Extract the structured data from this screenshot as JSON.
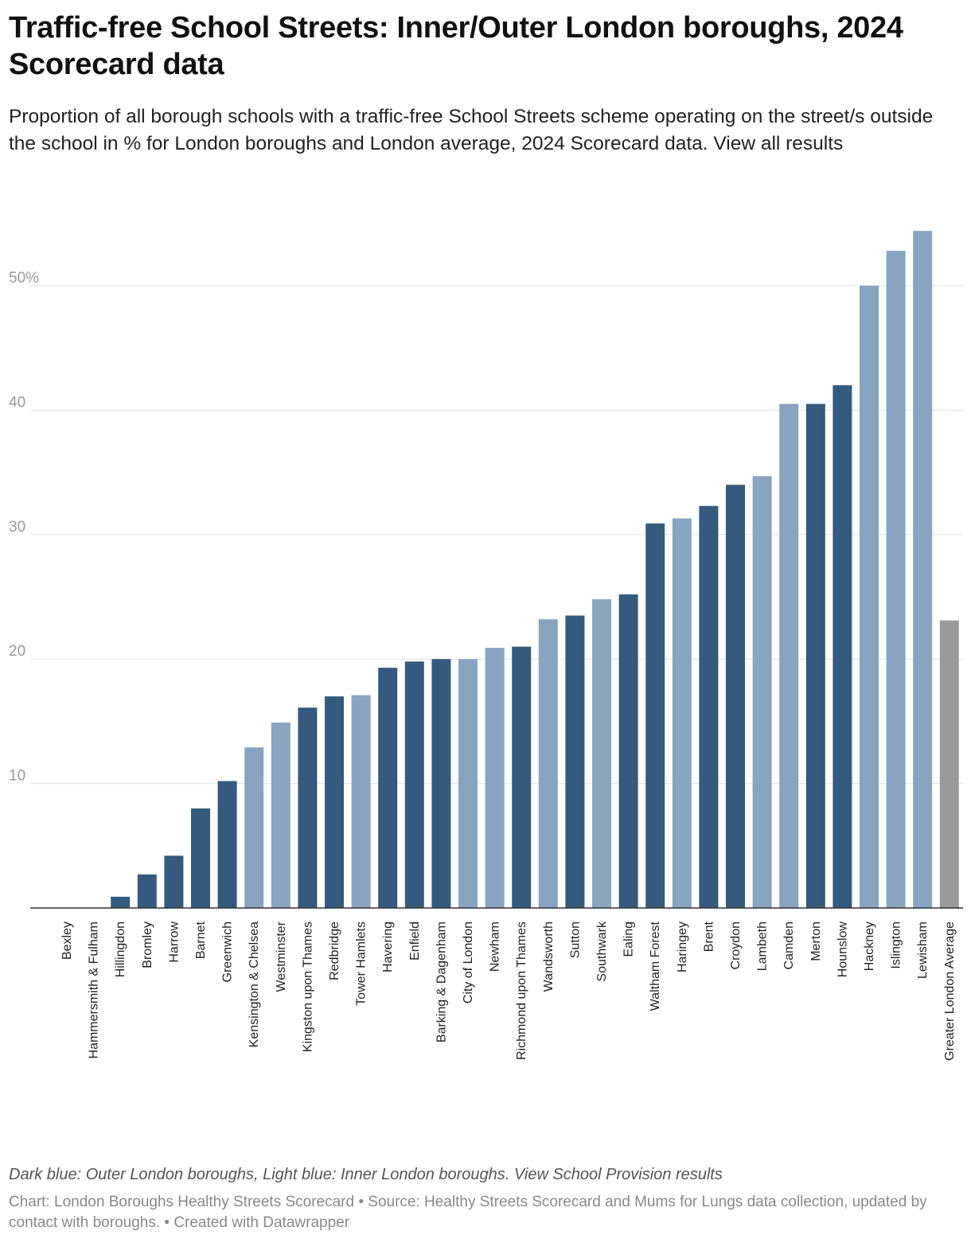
{
  "title": "Traffic-free School Streets: Inner/Outer London boroughs, 2024 Scorecard data",
  "subtitle": "Proportion of all borough schools with a traffic-free School Streets scheme operating on the street/s outside the school in % for London boroughs and London average, 2024 Scorecard data. View all results",
  "notes": "Dark blue: Outer London boroughs, Light blue: Inner London boroughs. View School Provision results",
  "footer": "Chart: London Boroughs Healthy Streets Scorecard • Source: Healthy Streets Scorecard and Mums for Lungs data collection, updated by contact with boroughs. • Created with Datawrapper",
  "colors": {
    "outer": "#345b7d",
    "inner": "#87a5c0",
    "average": "#9a9a9a",
    "grid": "#e2e2e2",
    "axis": "#333333"
  },
  "chart_data": {
    "type": "bar",
    "title": "Traffic-free School Streets: Inner/Outer London boroughs, 2024 Scorecard data",
    "xlabel": "",
    "ylabel": "",
    "ylim": [
      0,
      55
    ],
    "yticks": [
      {
        "value": 10,
        "label": "10"
      },
      {
        "value": 20,
        "label": "20"
      },
      {
        "value": 30,
        "label": "30"
      },
      {
        "value": 40,
        "label": "40"
      },
      {
        "value": 50,
        "label": "50%"
      }
    ],
    "categories": [
      "Bexley",
      "Hammersmith & Fulham",
      "Hillingdon",
      "Bromley",
      "Harrow",
      "Barnet",
      "Greenwich",
      "Kensington & Chelsea",
      "Westminster",
      "Kingston upon Thames",
      "Redbridge",
      "Tower Hamlets",
      "Havering",
      "Enfield",
      "Barking & Dagenham",
      "City of London",
      "Newham",
      "Richmond upon Thames",
      "Wandsworth",
      "Sutton",
      "Southwark",
      "Ealing",
      "Waltham Forest",
      "Haringey",
      "Brent",
      "Croydon",
      "Lambeth",
      "Camden",
      "Merton",
      "Hounslow",
      "Hackney",
      "Islington",
      "Lewisham",
      "Greater London Average"
    ],
    "values": [
      0,
      0,
      0.9,
      2.7,
      4.2,
      8.0,
      10.2,
      12.9,
      14.9,
      16.1,
      17.0,
      17.1,
      19.3,
      19.8,
      20.0,
      20.0,
      20.9,
      21.0,
      23.2,
      23.5,
      24.8,
      25.2,
      30.9,
      31.3,
      32.3,
      34.0,
      34.7,
      40.5,
      40.5,
      42.0,
      50.0,
      52.8,
      54.4,
      23.1
    ],
    "groups": [
      "outer",
      "inner",
      "outer",
      "outer",
      "outer",
      "outer",
      "outer",
      "inner",
      "inner",
      "outer",
      "outer",
      "inner",
      "outer",
      "outer",
      "outer",
      "inner",
      "inner",
      "outer",
      "inner",
      "outer",
      "inner",
      "outer",
      "outer",
      "inner",
      "outer",
      "outer",
      "inner",
      "inner",
      "outer",
      "outer",
      "inner",
      "inner",
      "inner",
      "average"
    ]
  }
}
